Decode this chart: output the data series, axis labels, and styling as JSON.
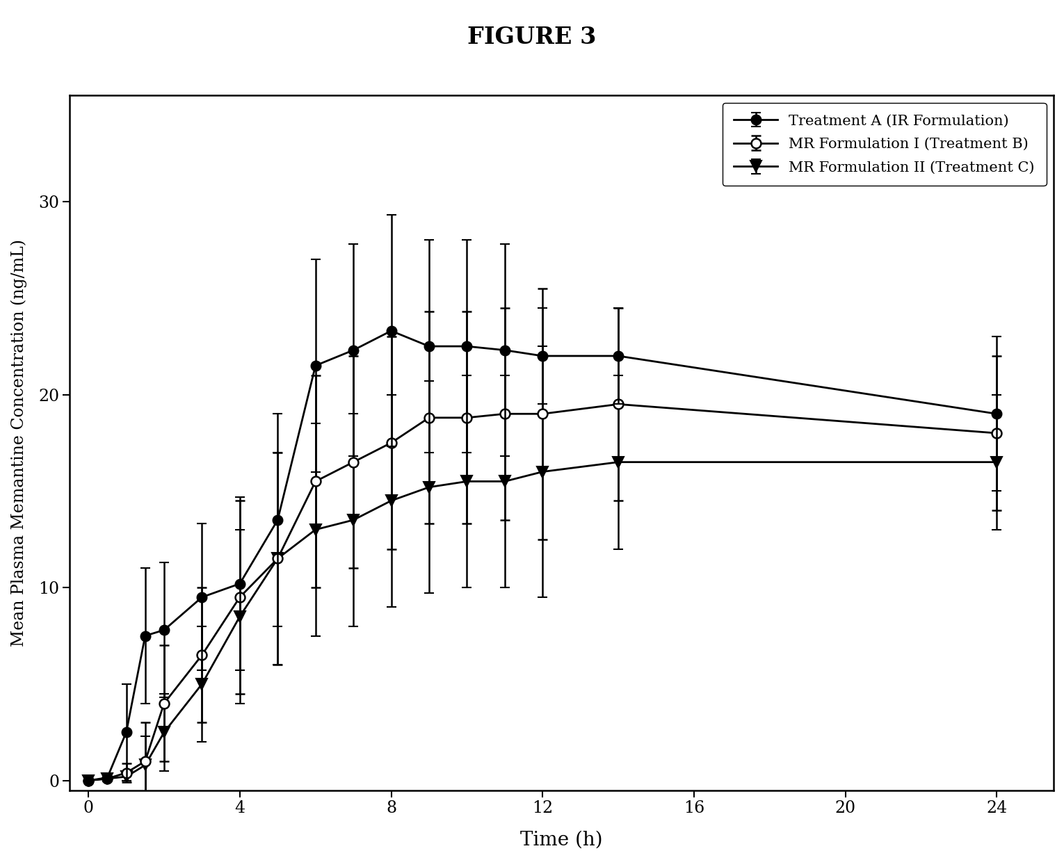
{
  "title": "FIGURE 3",
  "xlabel": "Time (h)",
  "ylabel": "Mean Plasma Memantine Concentration (ng/mL)",
  "xticks": [
    0,
    4,
    8,
    12,
    16,
    20,
    24
  ],
  "yticks": [
    0,
    10,
    20,
    30
  ],
  "treatment_A": {
    "label": "Treatment A (IR Formulation)",
    "x": [
      0,
      0.5,
      1,
      1.5,
      2,
      3,
      4,
      5,
      6,
      7,
      8,
      9,
      10,
      11,
      12,
      14,
      24
    ],
    "y": [
      0,
      0.15,
      2.5,
      7.5,
      7.8,
      9.5,
      10.2,
      13.5,
      21.5,
      22.3,
      23.3,
      22.5,
      22.5,
      22.3,
      22.0,
      22.0,
      19.0
    ],
    "yerr": [
      0,
      0.2,
      2.5,
      3.5,
      3.5,
      3.8,
      4.5,
      5.5,
      5.5,
      5.5,
      6.0,
      5.5,
      5.5,
      5.5,
      2.5,
      2.5,
      4.0
    ]
  },
  "treatment_B": {
    "label": "MR Formulation I (Treatment B)",
    "x": [
      0,
      0.5,
      1,
      1.5,
      2,
      3,
      4,
      5,
      6,
      7,
      8,
      9,
      10,
      11,
      12,
      14,
      24
    ],
    "y": [
      0,
      0.1,
      0.4,
      1.0,
      4.0,
      6.5,
      9.5,
      11.5,
      15.5,
      16.5,
      17.5,
      18.8,
      18.8,
      19.0,
      19.0,
      19.5,
      18.0
    ],
    "yerr": [
      0,
      0.1,
      0.5,
      2.0,
      3.0,
      3.5,
      5.0,
      5.5,
      5.5,
      5.5,
      5.5,
      5.5,
      5.5,
      5.5,
      6.5,
      5.0,
      4.0
    ]
  },
  "treatment_C": {
    "label": "MR Formulation II (Treatment C)",
    "x": [
      0,
      0.5,
      1,
      1.5,
      2,
      3,
      4,
      5,
      6,
      7,
      8,
      9,
      10,
      11,
      12,
      14,
      24
    ],
    "y": [
      0,
      0.1,
      0.2,
      0.8,
      2.5,
      5.0,
      8.5,
      11.5,
      13.0,
      13.5,
      14.5,
      15.2,
      15.5,
      15.5,
      16.0,
      16.5,
      16.5
    ],
    "yerr": [
      0,
      0.1,
      0.2,
      1.5,
      2.0,
      3.0,
      4.5,
      5.5,
      5.5,
      5.5,
      5.5,
      5.5,
      5.5,
      5.5,
      6.5,
      4.5,
      3.5
    ]
  },
  "background_color": "#ffffff",
  "figure_bg_color": "#ffffff"
}
